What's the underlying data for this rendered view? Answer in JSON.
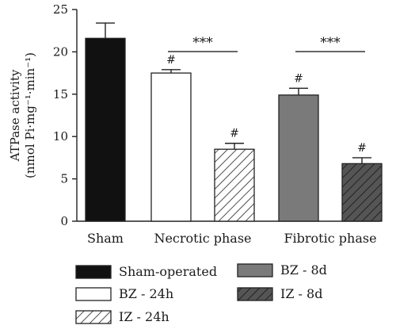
{
  "chart_data": {
    "type": "bar",
    "ylabel": [
      "ATPase activity",
      "(nmol Pi·mg⁻¹·min⁻¹)"
    ],
    "ylim": [
      0,
      25
    ],
    "yticks": [
      0,
      5,
      10,
      15,
      20,
      25
    ],
    "groups": [
      {
        "label": "Sham",
        "bars": [
          "Sham-operated"
        ]
      },
      {
        "label": "Necrotic phase",
        "bars": [
          "BZ - 24h",
          "IZ - 24h"
        ]
      },
      {
        "label": "Fibrotic phase",
        "bars": [
          "BZ - 8d",
          "IZ - 8d"
        ]
      }
    ],
    "series": [
      {
        "name": "Sham-operated",
        "value": 21.6,
        "error": 1.8,
        "marker": "",
        "fill": "#111111",
        "pattern": "solid"
      },
      {
        "name": "BZ - 24h",
        "value": 17.5,
        "error": 0.4,
        "marker": "#",
        "fill": "#ffffff",
        "pattern": "solid"
      },
      {
        "name": "IZ - 24h",
        "value": 8.5,
        "error": 0.7,
        "marker": "#",
        "fill": "#ffffff",
        "pattern": "hatch-light"
      },
      {
        "name": "BZ - 8d",
        "value": 14.9,
        "error": 0.8,
        "marker": "#",
        "fill": "#7a7a7a",
        "pattern": "solid"
      },
      {
        "name": "IZ - 8d",
        "value": 6.8,
        "error": 0.7,
        "marker": "#",
        "fill": "#555555",
        "pattern": "hatch-dark"
      }
    ],
    "significance": [
      {
        "from": "BZ - 24h",
        "to": "IZ - 24h",
        "label": "***",
        "y": 22
      },
      {
        "from": "BZ - 8d",
        "to": "IZ - 8d",
        "label": "***",
        "y": 22
      }
    ],
    "legend": {
      "placement": "bottom",
      "items": [
        "Sham-operated",
        "BZ - 8d",
        "BZ - 24h",
        "IZ - 8d",
        "IZ - 24h"
      ]
    },
    "grid": false
  }
}
